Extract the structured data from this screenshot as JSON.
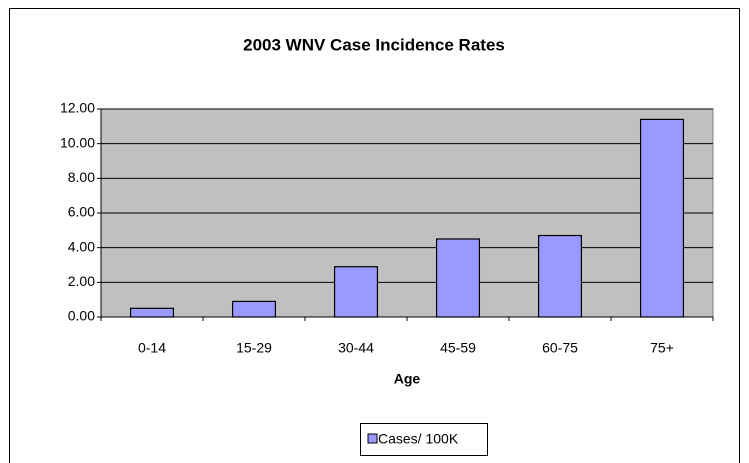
{
  "chart_data": {
    "type": "bar",
    "title": "2003 WNV Case Incidence Rates",
    "x_label": "Age",
    "categories": [
      "0-14",
      "15-29",
      "30-44",
      "45-59",
      "60-75",
      "75+"
    ],
    "series": [
      {
        "name": "Cases/ 100K",
        "color": "#9999ff",
        "values": [
          0.5,
          0.9,
          2.9,
          4.5,
          4.7,
          11.4
        ]
      }
    ],
    "ylim": [
      0,
      12
    ],
    "yticks": [
      {
        "value": 0,
        "label": "0.00"
      },
      {
        "value": 2,
        "label": "2.00"
      },
      {
        "value": 4,
        "label": "4.00"
      },
      {
        "value": 6,
        "label": "6.00"
      },
      {
        "value": 8,
        "label": "8.00"
      },
      {
        "value": 10,
        "label": "10.00"
      },
      {
        "value": 12,
        "label": "12.00"
      }
    ],
    "grid": true,
    "legend": "bottom"
  }
}
